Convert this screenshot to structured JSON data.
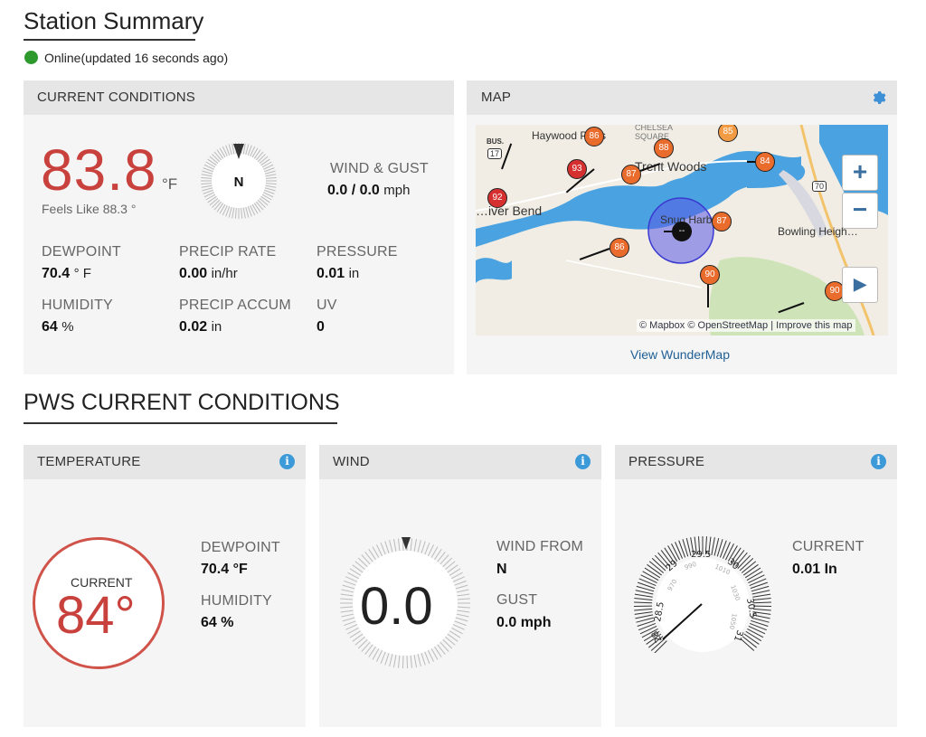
{
  "summary": {
    "title": "Station Summary",
    "status": "Online(updated 16 seconds ago)",
    "status_color": "#2e9a2e"
  },
  "current": {
    "header": "CURRENT CONDITIONS",
    "temp": "83.8",
    "temp_unit": "°F",
    "feels_like": "Feels Like 88.3 °",
    "compass_dir": "N",
    "wind_gust_label": "WIND & GUST",
    "wind_value": "0.0",
    "gust_sep": " / 0.0",
    "wind_unit": "mph",
    "dewpoint_label": "DEWPOINT",
    "dewpoint_value": "70.4",
    "dewpoint_unit": "° F",
    "precip_rate_label": "PRECIP RATE",
    "precip_rate_value": "0.00",
    "precip_rate_unit": "in/hr",
    "pressure_label": "PRESSURE",
    "pressure_value": "0.01",
    "pressure_unit": "in",
    "humidity_label": "HUMIDITY",
    "humidity_value": "64",
    "humidity_unit": "%",
    "precip_accum_label": "PRECIP ACCUM",
    "precip_accum_value": "0.02",
    "precip_accum_unit": "in",
    "uv_label": "UV",
    "uv_value": "0"
  },
  "map": {
    "header": "MAP",
    "link": "View WunderMap",
    "attribution": "© Mapbox © OpenStreetMap | Improve this map",
    "zoom_in": "+",
    "zoom_out": "−",
    "play": "▶",
    "places": [
      "Haywood Pl…s",
      "Trent Woods",
      "…iver Bend",
      "Snug Harb…",
      "Bowling Heigh…",
      "CHELSEA",
      "SQUARE",
      "BUS.",
      "17",
      "70"
    ],
    "markers": [
      "86",
      "88",
      "93",
      "87",
      "92",
      "87",
      "86",
      "90",
      "90",
      "85",
      "84",
      "--"
    ]
  },
  "pws": {
    "title": "PWS CURRENT CONDITIONS",
    "temperature": {
      "header": "TEMPERATURE",
      "current_label": "CURRENT",
      "current_value": "84°",
      "dewpoint_label": "DEWPOINT",
      "dewpoint_value": "70.4 °F",
      "humidity_label": "HUMIDITY",
      "humidity_value": "64 %"
    },
    "wind": {
      "header": "WIND",
      "speed": "0.0",
      "from_label": "WIND FROM",
      "from_value": "N",
      "gust_label": "GUST",
      "gust_value": "0.0 mph"
    },
    "pressure": {
      "header": "PRESSURE",
      "current_label": "CURRENT",
      "current_value": "0.01 In",
      "gauge_labels": [
        "28.5",
        "29",
        "29.5",
        "30",
        "30.5",
        "31",
        "28"
      ],
      "gauge_inner": [
        "970",
        "990",
        "1010",
        "1030",
        "1050"
      ]
    }
  },
  "colors": {
    "accent_red": "#c9413c",
    "link_blue": "#1f5f95",
    "info_blue": "#3d9ad9"
  }
}
